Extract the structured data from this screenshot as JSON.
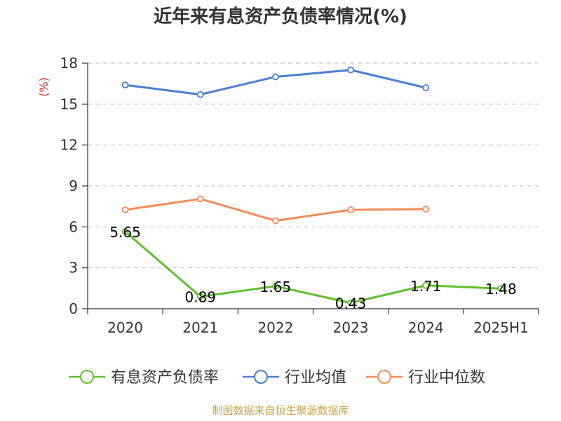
{
  "chart_data": {
    "type": "line",
    "title": "近年来有息资产负债率情况(%)",
    "ylabel": "(%)",
    "xlabel": "",
    "categories": [
      "2020",
      "2021",
      "2022",
      "2023",
      "2024",
      "2025H1"
    ],
    "ylim": [
      0,
      18
    ],
    "yticks": [
      0,
      3,
      6,
      9,
      12,
      15,
      18
    ],
    "grid": true,
    "legend_position": "bottom",
    "series": [
      {
        "name": "有息资产负债率",
        "color": "#5fc12b",
        "values": [
          5.65,
          0.89,
          1.65,
          0.43,
          1.71,
          1.48
        ],
        "data_labels": [
          "5.65",
          "0.89",
          "1.65",
          "0.43",
          "1.71",
          "1.48"
        ]
      },
      {
        "name": "行业均值",
        "color": "#4a7fd6",
        "values": [
          16.4,
          15.7,
          17.0,
          17.5,
          16.2,
          null
        ]
      },
      {
        "name": "行业中位数",
        "color": "#f28c5a",
        "values": [
          7.25,
          8.05,
          6.45,
          7.25,
          7.3,
          null
        ]
      }
    ]
  },
  "source": "制图数据来自恒生聚源数据库"
}
